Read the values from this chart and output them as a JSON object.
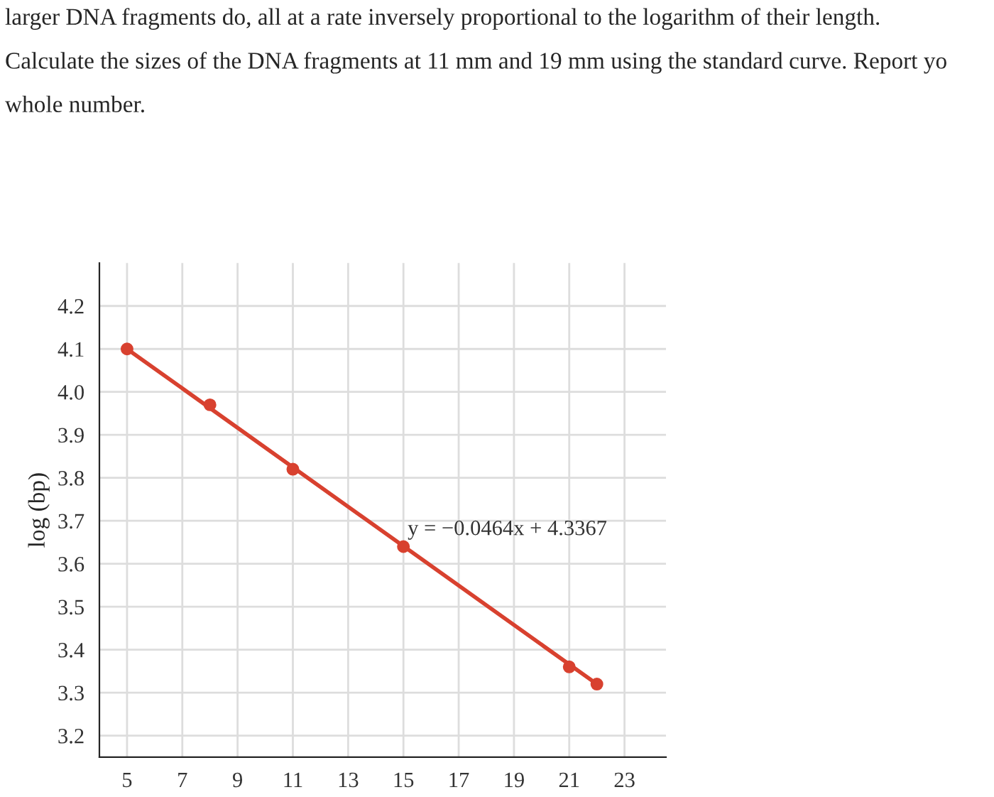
{
  "chart_data": {
    "type": "scatter",
    "ylabel": "log (bp)",
    "annotations": [
      "larger DNA fragments do, all at a rate inversely proportional to the logarithm of their length.",
      "Calculate the sizes of the DNA fragments at 11 mm and 19 mm using the standard curve. Report yo",
      "whole number.",
      "y = −0.0464x + 4.3367"
    ],
    "series": [
      {
        "marker": "circle",
        "color": "#d8412f",
        "x": [
          5,
          8,
          11,
          15,
          21,
          22
        ],
        "values": [
          4.1,
          3.97,
          3.82,
          3.64,
          3.36,
          3.32
        ]
      },
      {
        "type": "line",
        "color": "#d8412f",
        "x": [
          5,
          22
        ],
        "values": [
          4.1,
          3.32
        ]
      }
    ],
    "xlim": [
      4,
      24.5
    ],
    "ylim": [
      3.15,
      4.3
    ],
    "xticks": [
      5,
      7,
      9,
      11,
      13,
      15,
      17,
      19,
      21,
      23
    ],
    "yticks": [
      3.2,
      3.3,
      3.4,
      3.5,
      3.6,
      3.7,
      3.8,
      3.9,
      {
        "value": 4.0,
        "label": "4.0"
      },
      4.1,
      4.2
    ],
    "grid": true
  }
}
